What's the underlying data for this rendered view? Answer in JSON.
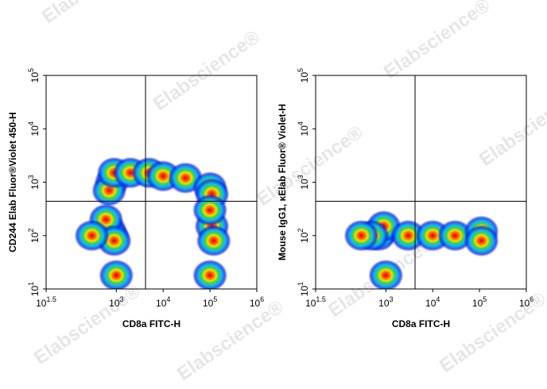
{
  "watermark": "Elabscience®",
  "chart_data": [
    {
      "type": "scatter",
      "log_x": true,
      "log_y": true,
      "x_label": "CD8a FITC-H",
      "y_label": "CD244 Elab Fluor®Violet 450-H",
      "xlim": [
        31.62,
        1000000
      ],
      "xticks": [
        {
          "value": 31.62,
          "label": "10^1.5"
        },
        {
          "value": 1000,
          "label": "10^3"
        },
        {
          "value": 10000,
          "label": "10^4"
        },
        {
          "value": 100000,
          "label": "10^5"
        },
        {
          "value": 1000000,
          "label": "10^6"
        }
      ],
      "ylim": [
        10,
        100000
      ],
      "yticks": [
        {
          "value": 10,
          "label": "10^1"
        },
        {
          "value": 100,
          "label": "10^2"
        },
        {
          "value": 1000,
          "label": "10^3"
        },
        {
          "value": 10000,
          "label": "10^4"
        },
        {
          "value": 100000,
          "label": "10^5"
        }
      ],
      "gate_x": 4200,
      "gate_y": 440,
      "x": [
        800,
        700,
        900,
        700,
        800,
        600,
        900,
        2000,
        5000,
        10000,
        30000,
        100000,
        110000,
        110000,
        120000,
        100000,
        300,
        1000,
        100000
      ],
      "values": [
        1000,
        700,
        1500,
        130,
        100,
        200,
        80,
        1500,
        1500,
        1300,
        1200,
        800,
        600,
        150,
        80,
        300,
        100,
        18,
        18
      ]
    },
    {
      "type": "scatter",
      "log_x": true,
      "log_y": true,
      "x_label": "CD8a FITC-H",
      "y_label": "Mouse IgG1, κElab Fluor® Violet-H",
      "xlim": [
        31.62,
        1000000
      ],
      "xticks": [
        {
          "value": 31.62,
          "label": "10^1.5"
        },
        {
          "value": 1000,
          "label": "10^3"
        },
        {
          "value": 10000,
          "label": "10^4"
        },
        {
          "value": 100000,
          "label": "10^5"
        },
        {
          "value": 1000000,
          "label": "10^6"
        }
      ],
      "ylim": [
        10,
        100000
      ],
      "yticks": [
        {
          "value": 10,
          "label": "10^1"
        },
        {
          "value": 100,
          "label": "10^2"
        },
        {
          "value": 1000,
          "label": "10^3"
        },
        {
          "value": 10000,
          "label": "10^4"
        },
        {
          "value": 100000,
          "label": "10^5"
        }
      ],
      "gate_x": 4200,
      "gate_y": 440,
      "x": [
        800,
        700,
        900,
        500,
        3000,
        10000,
        30000,
        110000,
        110000,
        300,
        1000
      ],
      "values": [
        120,
        100,
        150,
        100,
        100,
        100,
        100,
        120,
        80,
        100,
        18
      ]
    }
  ]
}
